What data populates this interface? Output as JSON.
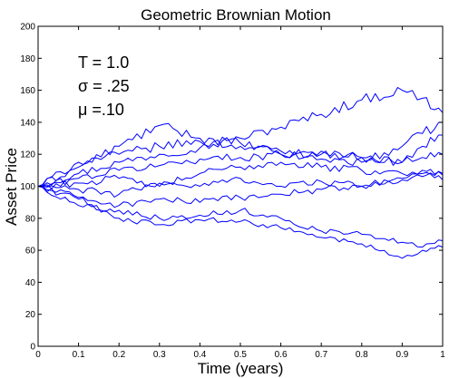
{
  "chart_data": {
    "type": "line",
    "title": "Geometric Brownian Motion",
    "xlabel": "Time (years)",
    "ylabel": "Asset Price",
    "xlim": [
      0,
      1
    ],
    "ylim": [
      0,
      200
    ],
    "xticks": [
      "0",
      "0.1",
      "0.2",
      "0.3",
      "0.4",
      "0.5",
      "0.6",
      "0.7",
      "0.8",
      "0.9",
      "1"
    ],
    "yticks": [
      "0",
      "20",
      "40",
      "60",
      "80",
      "100",
      "120",
      "140",
      "160",
      "180",
      "200"
    ],
    "grid": false,
    "line_color": "#0000ff",
    "annotations": [
      "T = 1.0",
      "σ = .25",
      "μ =.10"
    ],
    "series": [
      {
        "x": [
          0,
          0.1,
          0.2,
          0.3,
          0.4,
          0.5,
          0.6,
          0.7,
          0.8,
          0.9,
          0.95,
          1.0
        ],
        "values": [
          100,
          108,
          115,
          120,
          124,
          130,
          137,
          145,
          154,
          160,
          155,
          146
        ]
      },
      {
        "x": [
          0,
          0.1,
          0.2,
          0.3,
          0.4,
          0.5,
          0.6,
          0.7,
          0.8,
          0.9,
          0.95,
          1.0
        ],
        "values": [
          100,
          112,
          125,
          138,
          130,
          127,
          120,
          117,
          115,
          125,
          133,
          140
        ]
      },
      {
        "x": [
          0,
          0.1,
          0.2,
          0.3,
          0.4,
          0.5,
          0.6,
          0.7,
          0.8,
          0.9,
          0.95,
          1.0
        ],
        "values": [
          100,
          115,
          120,
          125,
          128,
          125,
          122,
          120,
          118,
          115,
          125,
          132
        ]
      },
      {
        "x": [
          0,
          0.1,
          0.2,
          0.3,
          0.4,
          0.5,
          0.6,
          0.7,
          0.8,
          0.9,
          0.95,
          1.0
        ],
        "values": [
          100,
          105,
          110,
          113,
          117,
          118,
          120,
          122,
          118,
          115,
          118,
          120
        ]
      },
      {
        "x": [
          0,
          0.1,
          0.2,
          0.3,
          0.4,
          0.5,
          0.6,
          0.7,
          0.8,
          0.9,
          0.95,
          1.0
        ],
        "values": [
          100,
          102,
          105,
          100,
          108,
          112,
          115,
          112,
          110,
          108,
          110,
          107
        ]
      },
      {
        "x": [
          0,
          0.1,
          0.2,
          0.3,
          0.4,
          0.5,
          0.6,
          0.7,
          0.8,
          0.9,
          0.95,
          1.0
        ],
        "values": [
          100,
          98,
          95,
          102,
          100,
          105,
          100,
          103,
          100,
          104,
          106,
          108
        ]
      },
      {
        "x": [
          0,
          0.1,
          0.2,
          0.3,
          0.4,
          0.5,
          0.6,
          0.7,
          0.8,
          0.9,
          0.95,
          1.0
        ],
        "values": [
          100,
          93,
          88,
          92,
          90,
          93,
          95,
          98,
          100,
          105,
          108,
          104
        ]
      },
      {
        "x": [
          0,
          0.1,
          0.2,
          0.3,
          0.4,
          0.5,
          0.6,
          0.7,
          0.8,
          0.9,
          0.95,
          1.0
        ],
        "values": [
          100,
          88,
          85,
          80,
          82,
          85,
          80,
          72,
          70,
          65,
          62,
          66
        ]
      },
      {
        "x": [
          0,
          0.1,
          0.2,
          0.3,
          0.4,
          0.5,
          0.6,
          0.7,
          0.8,
          0.9,
          0.95,
          1.0
        ],
        "values": [
          100,
          92,
          80,
          76,
          79,
          78,
          74,
          68,
          64,
          55,
          60,
          62
        ]
      }
    ]
  }
}
